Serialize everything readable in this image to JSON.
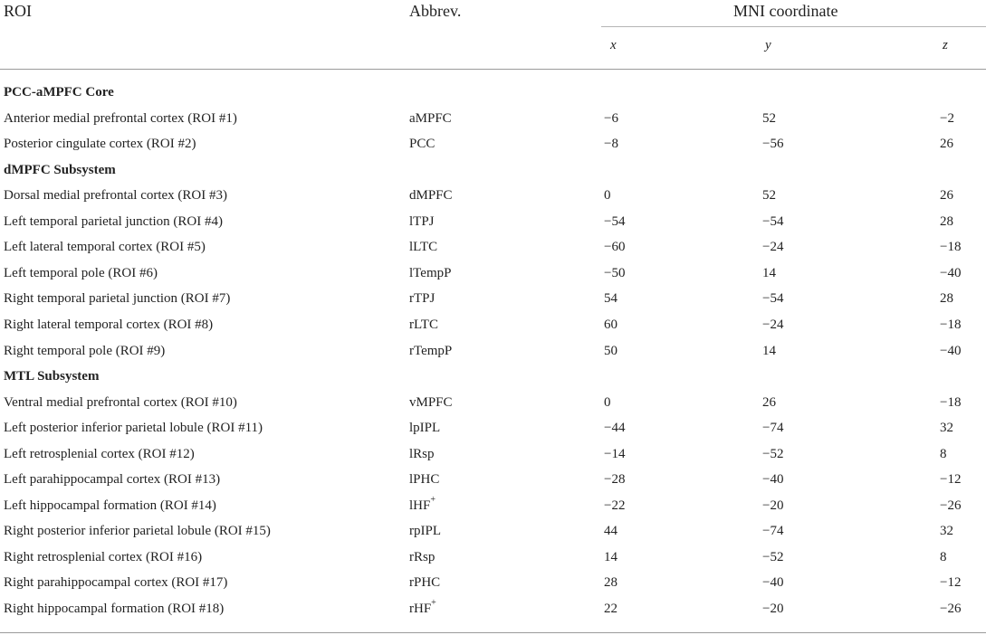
{
  "header": {
    "roi": "ROI",
    "abbrev": "Abbrev.",
    "mni": "MNI coordinate",
    "x": "x",
    "y": "y",
    "z": "z"
  },
  "rows": [
    {
      "type": "group",
      "label": "PCC-aMPFC Core"
    },
    {
      "type": "data",
      "roi": "Anterior medial prefrontal cortex (ROI #1)",
      "abbrev": "aMPFC",
      "x": "−6",
      "y": "52",
      "z": "−2"
    },
    {
      "type": "data",
      "roi": "Posterior cingulate cortex (ROI #2)",
      "abbrev": "PCC",
      "x": "−8",
      "y": "−56",
      "z": "26"
    },
    {
      "type": "group",
      "label": "dMPFC Subsystem"
    },
    {
      "type": "data",
      "roi": "Dorsal medial prefrontal cortex (ROI #3)",
      "abbrev": "dMPFC",
      "x": "0",
      "y": "52",
      "z": "26"
    },
    {
      "type": "data",
      "roi": "Left temporal parietal junction (ROI #4)",
      "abbrev": "lTPJ",
      "x": "−54",
      "y": "−54",
      "z": "28"
    },
    {
      "type": "data",
      "roi": "Left lateral temporal cortex (ROI #5)",
      "abbrev": "lLTC",
      "x": "−60",
      "y": "−24",
      "z": "−18"
    },
    {
      "type": "data",
      "roi": "Left temporal pole (ROI #6)",
      "abbrev": "lTempP",
      "x": "−50",
      "y": "14",
      "z": "−40"
    },
    {
      "type": "data",
      "roi": "Right temporal parietal junction (ROI #7)",
      "abbrev": "rTPJ",
      "x": "54",
      "y": "−54",
      "z": "28"
    },
    {
      "type": "data",
      "roi": "Right lateral temporal cortex (ROI #8)",
      "abbrev": "rLTC",
      "x": "60",
      "y": "−24",
      "z": "−18"
    },
    {
      "type": "data",
      "roi": "Right temporal pole (ROI #9)",
      "abbrev": "rTempP",
      "x": "50",
      "y": "14",
      "z": "−40"
    },
    {
      "type": "group",
      "label": "MTL Subsystem"
    },
    {
      "type": "data",
      "roi": "Ventral medial prefrontal cortex (ROI #10)",
      "abbrev": "vMPFC",
      "x": "0",
      "y": "26",
      "z": "−18"
    },
    {
      "type": "data",
      "roi": "Left posterior inferior parietal lobule (ROI #11)",
      "abbrev": "lpIPL",
      "x": "−44",
      "y": "−74",
      "z": "32"
    },
    {
      "type": "data",
      "roi": "Left retrosplenial cortex (ROI #12)",
      "abbrev": "lRsp",
      "x": "−14",
      "y": "−52",
      "z": "8"
    },
    {
      "type": "data",
      "roi": "Left parahippocampal cortex (ROI #13)",
      "abbrev": "lPHC",
      "x": "−28",
      "y": "−40",
      "z": "−12"
    },
    {
      "type": "data",
      "roi": "Left hippocampal formation (ROI #14)",
      "abbrev": "lHF",
      "abbrev_sup": "+",
      "x": "−22",
      "y": "−20",
      "z": "−26"
    },
    {
      "type": "data",
      "roi": "Right posterior inferior parietal lobule (ROI #15)",
      "abbrev": "rpIPL",
      "x": "44",
      "y": "−74",
      "z": "32"
    },
    {
      "type": "data",
      "roi": "Right retrosplenial cortex (ROI #16)",
      "abbrev": "rRsp",
      "x": "14",
      "y": "−52",
      "z": "8"
    },
    {
      "type": "data",
      "roi": "Right parahippocampal cortex (ROI #17)",
      "abbrev": "rPHC",
      "x": "28",
      "y": "−40",
      "z": "−12"
    },
    {
      "type": "data",
      "roi": "Right hippocampal formation (ROI #18)",
      "abbrev": "rHF",
      "abbrev_sup": "+",
      "x": "22",
      "y": "−20",
      "z": "−26"
    }
  ]
}
